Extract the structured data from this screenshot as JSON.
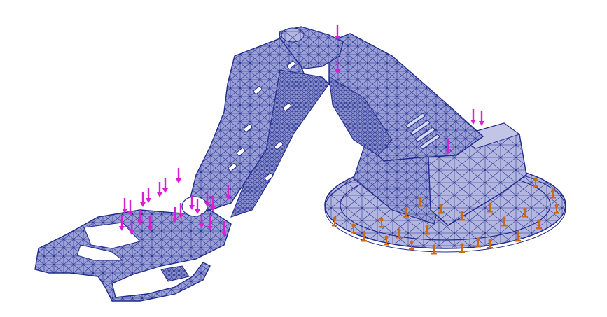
{
  "colors": {
    "background": "#ffffff",
    "mesh_fill": "#9aa0d6",
    "mesh_fill_light": "#b6badf",
    "mesh_fill_dark": "#6e74b8",
    "mesh_line": "#1f2a8c",
    "cutout": "#ffffff",
    "load_arrow": "#d81fd4",
    "fixture": "#c86a16"
  },
  "model": {
    "parts": [
      "claw-gripper",
      "forearm-link",
      "upper-arm-link",
      "shoulder-mount",
      "base-turntable"
    ],
    "loads": {
      "icon": "downward-arrow-icon",
      "count": 26
    },
    "fixtures": {
      "icon": "fixed-geometry-icon",
      "count": 24
    }
  }
}
